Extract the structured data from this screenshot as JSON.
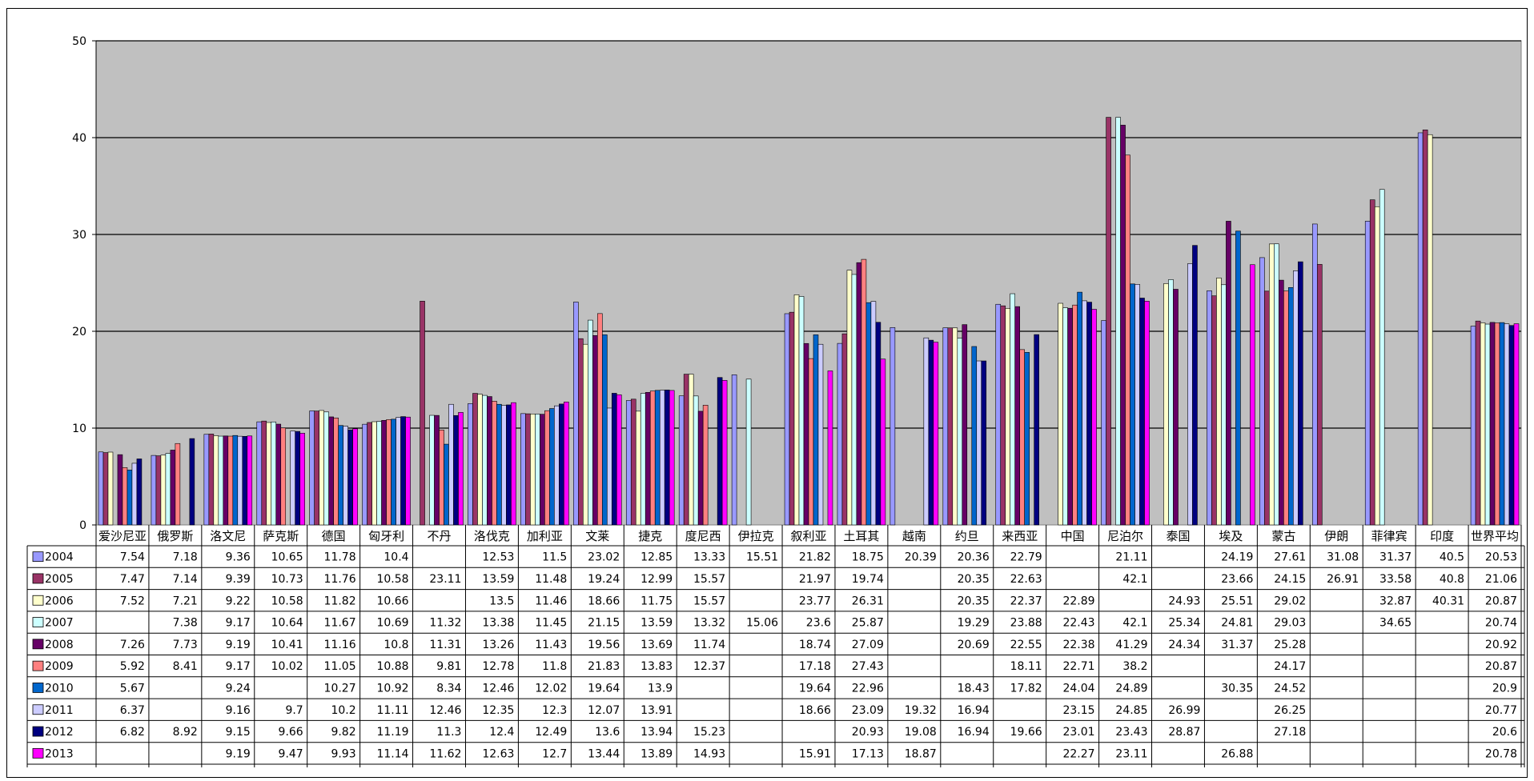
{
  "chart_data": {
    "type": "bar",
    "title": "",
    "xlabel": "",
    "ylabel": "",
    "ylim": [
      0,
      50
    ],
    "yticks": [
      0,
      10,
      20,
      30,
      40,
      50
    ],
    "grid": true,
    "legend": "data-table-left",
    "categories": [
      "爱沙尼亚",
      "俄罗斯",
      "斯洛文尼亚",
      "拉萨克斯",
      "德国",
      "匈牙利",
      "不丹",
      "斯洛伐克",
      "保加利亚",
      "文莱",
      "捷克",
      "印度尼西亚",
      "伊拉克",
      "叙利亚",
      "土耳其",
      "越南",
      "约旦",
      "马来西亚",
      "中国",
      "尼泊尔",
      "泰国",
      "埃及",
      "蒙古",
      "伊朗",
      "菲律宾",
      "印度",
      "世界平均"
    ],
    "category_labels": [
      "爱沙尼亚",
      "俄罗斯",
      "洛文尼",
      "萨克斯",
      "德国",
      "匈牙利",
      "不丹",
      "洛伐克",
      "加利亚",
      "文莱",
      "捷克",
      "度尼西",
      "伊拉克",
      "叙利亚",
      "土耳其",
      "越南",
      "约旦",
      "来西亚",
      "中国",
      "尼泊尔",
      "泰国",
      "埃及",
      "蒙古",
      "伊朗",
      "菲律宾",
      "印度",
      "世界平均"
    ],
    "series": [
      {
        "name": "2004",
        "color": "#9999FF",
        "values": [
          7.54,
          7.18,
          9.36,
          10.65,
          11.78,
          10.4,
          null,
          12.53,
          11.5,
          23.02,
          12.85,
          13.33,
          15.51,
          21.82,
          18.75,
          20.39,
          20.36,
          22.79,
          null,
          21.11,
          null,
          24.19,
          27.61,
          31.08,
          31.37,
          40.5,
          20.53
        ]
      },
      {
        "name": "2005",
        "color": "#993366",
        "values": [
          7.47,
          7.14,
          9.39,
          10.73,
          11.76,
          10.58,
          23.11,
          13.59,
          11.48,
          19.24,
          12.99,
          15.57,
          null,
          21.97,
          19.74,
          null,
          20.35,
          22.63,
          null,
          42.1,
          null,
          23.66,
          24.15,
          26.91,
          33.58,
          40.8,
          21.06
        ]
      },
      {
        "name": "2006",
        "color": "#FFFFCC",
        "values": [
          7.52,
          7.21,
          9.22,
          10.58,
          11.82,
          10.66,
          null,
          13.5,
          11.46,
          18.66,
          11.75,
          15.57,
          null,
          23.77,
          26.31,
          null,
          20.35,
          22.37,
          22.89,
          null,
          24.93,
          25.51,
          29.02,
          null,
          32.87,
          40.31,
          20.87
        ]
      },
      {
        "name": "2007",
        "color": "#CCFFFF",
        "values": [
          null,
          7.38,
          9.17,
          10.64,
          11.67,
          10.69,
          11.32,
          13.38,
          11.45,
          21.15,
          13.59,
          13.32,
          15.06,
          23.6,
          25.87,
          null,
          19.29,
          23.88,
          22.43,
          42.1,
          25.34,
          24.81,
          29.03,
          null,
          34.65,
          null,
          20.74
        ]
      },
      {
        "name": "2008",
        "color": "#660066",
        "values": [
          7.26,
          7.73,
          9.19,
          10.41,
          11.16,
          10.8,
          11.31,
          13.26,
          11.43,
          19.56,
          13.69,
          11.74,
          null,
          18.74,
          27.09,
          null,
          20.69,
          22.55,
          22.38,
          41.29,
          24.34,
          31.37,
          25.28,
          null,
          null,
          null,
          20.92
        ]
      },
      {
        "name": "2009",
        "color": "#FF8080",
        "values": [
          5.92,
          8.41,
          9.17,
          10.02,
          11.05,
          10.88,
          9.81,
          12.78,
          11.8,
          21.83,
          13.83,
          12.37,
          null,
          17.18,
          27.43,
          null,
          null,
          18.11,
          22.71,
          38.2,
          null,
          null,
          24.17,
          null,
          null,
          null,
          20.87
        ]
      },
      {
        "name": "2010",
        "color": "#0066CC",
        "values": [
          5.67,
          null,
          9.24,
          null,
          10.27,
          10.92,
          8.34,
          12.46,
          12.02,
          19.64,
          13.9,
          null,
          null,
          19.64,
          22.96,
          null,
          18.43,
          17.82,
          24.04,
          24.89,
          null,
          30.35,
          24.52,
          null,
          null,
          null,
          20.9
        ]
      },
      {
        "name": "2011",
        "color": "#CCCCFF",
        "values": [
          6.37,
          null,
          9.16,
          9.7,
          10.2,
          11.11,
          12.46,
          12.35,
          12.3,
          12.07,
          13.91,
          null,
          null,
          18.66,
          23.09,
          19.32,
          16.94,
          null,
          23.15,
          24.85,
          26.99,
          null,
          26.25,
          null,
          null,
          null,
          20.77
        ]
      },
      {
        "name": "2012",
        "color": "#000080",
        "values": [
          6.82,
          8.92,
          9.15,
          9.66,
          9.82,
          11.19,
          11.3,
          12.4,
          12.49,
          13.6,
          13.94,
          15.23,
          null,
          null,
          20.93,
          19.08,
          16.94,
          19.66,
          23.01,
          23.43,
          28.87,
          null,
          27.18,
          null,
          null,
          null,
          20.6
        ]
      },
      {
        "name": "2013",
        "color": "#FF00FF",
        "values": [
          null,
          null,
          9.19,
          9.47,
          9.93,
          11.14,
          11.62,
          12.63,
          12.7,
          13.44,
          13.89,
          14.93,
          null,
          15.91,
          17.13,
          18.87,
          null,
          null,
          22.27,
          23.11,
          null,
          26.88,
          null,
          null,
          null,
          null,
          20.78
        ]
      }
    ]
  }
}
